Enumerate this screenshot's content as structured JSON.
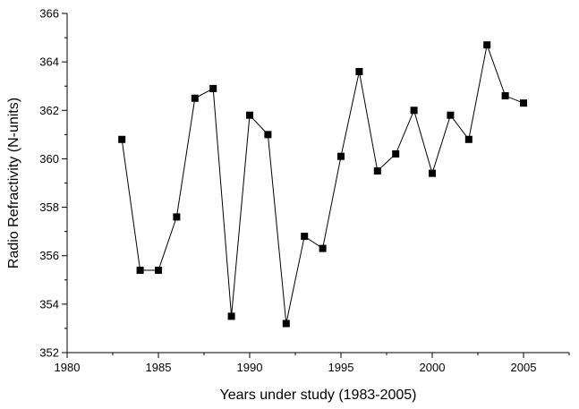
{
  "chart_data": {
    "type": "line",
    "xlabel": "Years under study (1983-2005)",
    "ylabel": "Radio Refractivity (N-units)",
    "xlim": [
      1980,
      2007.5
    ],
    "ylim": [
      352,
      366
    ],
    "x_ticks": [
      1980,
      1985,
      1990,
      1995,
      2000,
      2005
    ],
    "y_ticks": [
      352,
      354,
      356,
      358,
      360,
      362,
      364,
      366
    ],
    "grid": false,
    "series": [
      {
        "marker": "square",
        "color": "#000000",
        "x": [
          1983,
          1984,
          1985,
          1986,
          1987,
          1988,
          1989,
          1990,
          1991,
          1992,
          1993,
          1994,
          1995,
          1996,
          1997,
          1998,
          1999,
          2000,
          2001,
          2002,
          2003,
          2004,
          2005
        ],
        "y": [
          360.8,
          355.4,
          355.4,
          357.6,
          362.5,
          362.9,
          353.5,
          361.8,
          361.0,
          353.2,
          356.8,
          356.3,
          360.1,
          363.6,
          359.5,
          360.2,
          362.0,
          359.4,
          361.8,
          360.8,
          364.7,
          362.6,
          362.3
        ]
      }
    ]
  }
}
